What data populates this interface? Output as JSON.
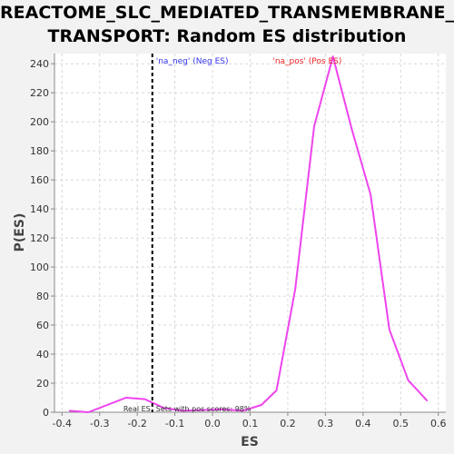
{
  "chart_data": {
    "type": "line",
    "title_line1": "REACTOME_SLC_MEDIATED_TRANSMEMBRANE_",
    "title_line2": "TRANSPORT: Random ES distribution",
    "xlabel": "ES",
    "ylabel": "P(ES)",
    "xlim": [
      -0.42,
      0.62
    ],
    "ylim": [
      0,
      247
    ],
    "x_ticks": [
      "-0.4",
      "-0.3",
      "-0.2",
      "-0.1",
      "0.0",
      "0.1",
      "0.2",
      "0.3",
      "0.4",
      "0.5",
      "0.6"
    ],
    "y_ticks": [
      "0",
      "20",
      "40",
      "60",
      "80",
      "100",
      "120",
      "140",
      "160",
      "180",
      "200",
      "220",
      "240"
    ],
    "grid": true,
    "series": [
      {
        "color": "#ee44ee",
        "x": [
          -0.38,
          -0.33,
          -0.23,
          -0.18,
          -0.13,
          -0.08,
          0.03,
          0.08,
          0.13,
          0.17,
          0.22,
          0.27,
          0.32,
          0.37,
          0.42,
          0.47,
          0.52,
          0.57
        ],
        "y": [
          1,
          0,
          10,
          9,
          3,
          1,
          2,
          1,
          5,
          15,
          85,
          197,
          245,
          195,
          150,
          57,
          22,
          8
        ]
      }
    ],
    "real_es_line": {
      "x": -0.16,
      "color": "#000000"
    },
    "annotations": {
      "neg_label": "'na_neg' (Neg ES)",
      "neg_color": "#3333ee",
      "pos_label": "'na_pos' (Pos ES)",
      "pos_color": "#ee2222",
      "real_es_text": "Real ES",
      "sets_text": "Sets with pos scores: 98%"
    }
  }
}
